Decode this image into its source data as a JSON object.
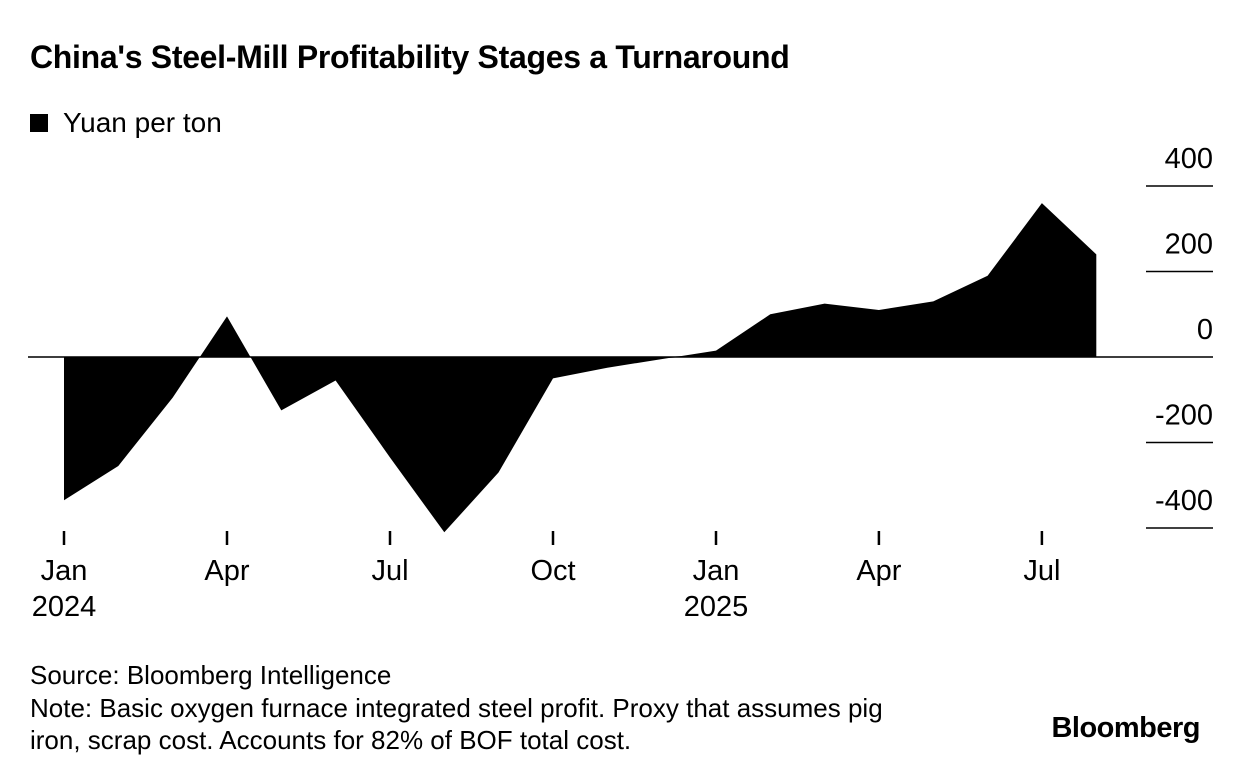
{
  "header": {
    "title": "China's Steel-Mill Profitability Stages a Turnaround"
  },
  "legend": {
    "label": "Yuan per ton",
    "swatch_color": "#000000"
  },
  "chart_data": {
    "type": "area",
    "title": "China's Steel-Mill Profitability Stages a Turnaround",
    "ylabel": "Yuan per ton",
    "xlabel": "",
    "x": [
      "Jan 2024",
      "Feb 2024",
      "Mar 2024",
      "Apr 2024",
      "May 2024",
      "Jun 2024",
      "Jul 2024",
      "Aug 2024",
      "Sep 2024",
      "Oct 2024",
      "Nov 2024",
      "Dec 2024",
      "Jan 2025",
      "Feb 2025",
      "Mar 2025",
      "Apr 2025",
      "May 2025",
      "Jun 2025",
      "Jul 2025",
      "Aug 2025"
    ],
    "values": [
      -335,
      -255,
      -95,
      95,
      -125,
      -55,
      -235,
      -410,
      -270,
      -50,
      -25,
      -5,
      15,
      100,
      125,
      110,
      130,
      190,
      360,
      240
    ],
    "baseline": 0,
    "ylim": [
      -450,
      430
    ],
    "y_ticks": [
      400,
      200,
      0,
      -200,
      -400
    ],
    "x_ticks": [
      {
        "label": "Jan",
        "year": "2024",
        "index": 0
      },
      {
        "label": "Apr",
        "index": 3
      },
      {
        "label": "Jul",
        "index": 6
      },
      {
        "label": "Oct",
        "index": 9
      },
      {
        "label": "Jan",
        "year": "2025",
        "index": 12
      },
      {
        "label": "Apr",
        "index": 15
      },
      {
        "label": "Jul",
        "index": 18
      }
    ],
    "fill_color": "#000000",
    "axis_side": "right",
    "grid": "short right-aligned segments under each y label, full-width zero line",
    "legend_position": "top-left"
  },
  "footer": {
    "source": "Source: Bloomberg Intelligence",
    "note_lines": [
      "Note: Basic oxygen furnace integrated steel profit. Proxy that assumes pig",
      "iron, scrap cost. Accounts for 82% of BOF total cost."
    ],
    "brand": "Bloomberg"
  }
}
